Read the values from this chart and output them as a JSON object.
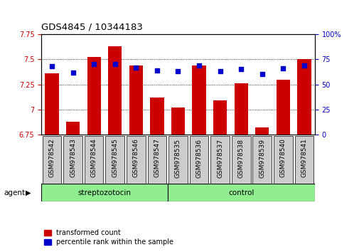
{
  "title": "GDS4845 / 10344183",
  "categories": [
    "GSM978542",
    "GSM978543",
    "GSM978544",
    "GSM978545",
    "GSM978546",
    "GSM978547",
    "GSM978535",
    "GSM978536",
    "GSM978537",
    "GSM978538",
    "GSM978539",
    "GSM978540",
    "GSM978541"
  ],
  "red_values": [
    7.36,
    6.88,
    7.52,
    7.63,
    7.44,
    7.12,
    7.02,
    7.44,
    7.09,
    7.26,
    6.82,
    7.3,
    7.5
  ],
  "blue_values": [
    68,
    62,
    70,
    70,
    67,
    64,
    63,
    69,
    63,
    65,
    60,
    66,
    69
  ],
  "baseline": 6.75,
  "ylim_left": [
    6.75,
    7.75
  ],
  "ylim_right": [
    0,
    100
  ],
  "yticks_left": [
    6.75,
    7.0,
    7.25,
    7.5,
    7.75
  ],
  "yticks_left_labels": [
    "6.75",
    "7",
    "7.25",
    "7.5",
    "7.75"
  ],
  "yticks_right": [
    0,
    25,
    50,
    75,
    100
  ],
  "yticks_right_labels": [
    "0",
    "25",
    "50",
    "75",
    "100%"
  ],
  "group1_label": "streptozotocin",
  "group2_label": "control",
  "group1_count": 6,
  "group2_count": 7,
  "agent_label": "agent",
  "legend1": "transformed count",
  "legend2": "percentile rank within the sample",
  "red_color": "#cc0000",
  "blue_color": "#0000cc",
  "bar_width": 0.65,
  "bg_color": "#ffffff",
  "group_bg": "#90ee90",
  "tick_label_bg": "#cccccc"
}
